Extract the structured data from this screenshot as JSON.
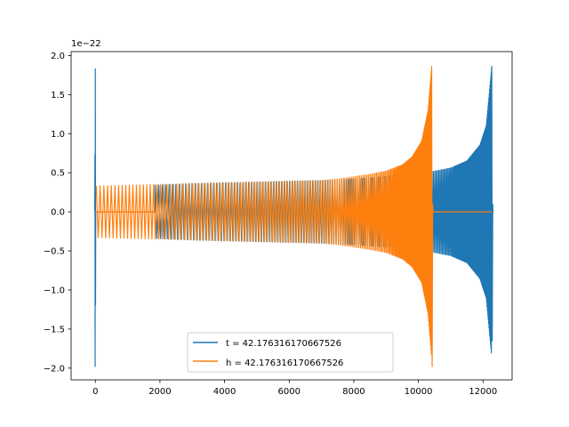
{
  "chart_data": {
    "type": "line",
    "title": "",
    "xlabel": "",
    "ylabel": "",
    "xlim": [
      -750,
      12900
    ],
    "ylim": [
      -2.15,
      2.05
    ],
    "y_scale_label": "1e−22",
    "grid": false,
    "legend_position": "lower-center",
    "x_ticks": [
      0,
      2000,
      4000,
      6000,
      8000,
      10000,
      12000
    ],
    "x_tick_labels": [
      "0",
      "2000",
      "4000",
      "6000",
      "8000",
      "10000",
      "12000"
    ],
    "y_ticks": [
      -2.0,
      -1.5,
      -1.0,
      -0.5,
      0.0,
      0.5,
      1.0,
      1.5,
      2.0
    ],
    "y_tick_labels": [
      "−2.0",
      "−1.5",
      "−1.0",
      "−0.5",
      "0.0",
      "0.5",
      "1.0",
      "1.5",
      "2.0"
    ],
    "series": [
      {
        "name": "t = 42.176316170667526",
        "color": "#1f77b4",
        "description": "chirp waveform, amplitude envelope points",
        "burst_start": {
          "x": 0,
          "ymax": 1.83,
          "ymin": -1.98
        },
        "envelope_x": [
          1850,
          2500,
          3000,
          4000,
          5000,
          6000,
          7000,
          8000,
          9000,
          10000,
          10500,
          11000,
          11500,
          11900,
          12100,
          12270
        ],
        "envelope_amp": [
          0.34,
          0.35,
          0.36,
          0.37,
          0.38,
          0.39,
          0.4,
          0.42,
          0.45,
          0.5,
          0.52,
          0.56,
          0.65,
          0.85,
          1.1,
          1.86
        ],
        "final_min": -1.65,
        "tail_end_x": 12290
      },
      {
        "name": "h = 42.176316170667526",
        "color": "#ff7f0e",
        "description": "chirp waveform, amplitude envelope points",
        "flat_segment": [
          0,
          1850
        ],
        "envelope_x": [
          30,
          1000,
          2000,
          3000,
          4000,
          5000,
          6000,
          7000,
          7500,
          8000,
          8500,
          9000,
          9500,
          9800,
          10100,
          10300,
          10410
        ],
        "envelope_amp": [
          0.33,
          0.34,
          0.35,
          0.36,
          0.37,
          0.38,
          0.39,
          0.4,
          0.42,
          0.45,
          0.48,
          0.52,
          0.6,
          0.7,
          0.9,
          1.3,
          1.86
        ],
        "final_min": -1.98,
        "tail_end_x": 12270
      }
    ]
  }
}
